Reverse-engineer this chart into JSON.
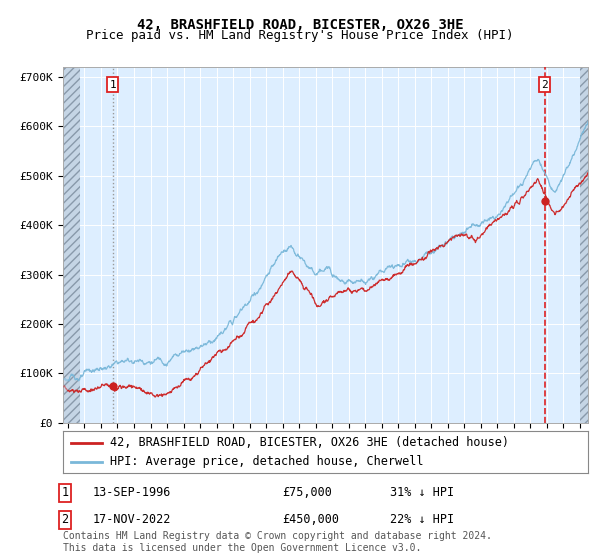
{
  "title": "42, BRASHFIELD ROAD, BICESTER, OX26 3HE",
  "subtitle": "Price paid vs. HM Land Registry's House Price Index (HPI)",
  "ylabel_ticks": [
    "£0",
    "£100K",
    "£200K",
    "£300K",
    "£400K",
    "£500K",
    "£600K",
    "£700K"
  ],
  "ytick_values": [
    0,
    100000,
    200000,
    300000,
    400000,
    500000,
    600000,
    700000
  ],
  "ylim": [
    0,
    720000
  ],
  "xlim_start": 1993.7,
  "xlim_end": 2025.5,
  "hpi_color": "#7ab8d9",
  "price_color": "#cc2222",
  "vline1_color": "#999999",
  "vline1_style": ":",
  "vline2_color": "#dd2222",
  "vline2_style": "--",
  "background_color": "#ddeeff",
  "transaction1_date": 1996.71,
  "transaction1_price": 75000,
  "transaction1_label": "1",
  "transaction2_date": 2022.88,
  "transaction2_price": 450000,
  "transaction2_label": "2",
  "legend_line1": "42, BRASHFIELD ROAD, BICESTER, OX26 3HE (detached house)",
  "legend_line2": "HPI: Average price, detached house, Cherwell",
  "note1_date": "13-SEP-1996",
  "note1_price": "£75,000",
  "note1_pct": "31% ↓ HPI",
  "note2_date": "17-NOV-2022",
  "note2_price": "£450,000",
  "note2_pct": "22% ↓ HPI",
  "footer": "Contains HM Land Registry data © Crown copyright and database right 2024.\nThis data is licensed under the Open Government Licence v3.0.",
  "title_fontsize": 10,
  "subtitle_fontsize": 9,
  "tick_fontsize": 8,
  "legend_fontsize": 8.5,
  "note_fontsize": 8.5,
  "footer_fontsize": 7
}
